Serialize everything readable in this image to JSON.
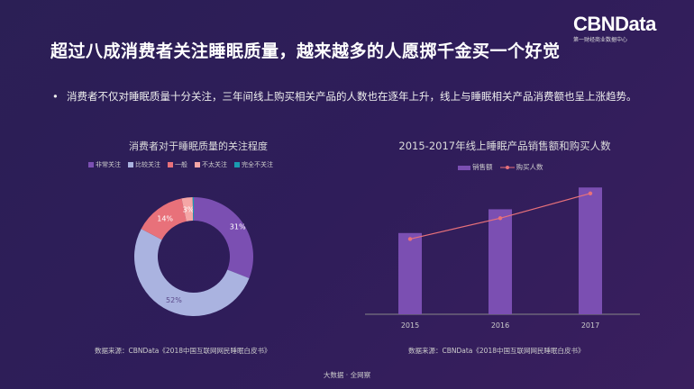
{
  "title": "超过八成消费者关注睡眠质量，越来越多的人愿掷千金买一个好觉",
  "logo": {
    "name": "CBNData",
    "subtitle": "第一财经商业数据中心"
  },
  "bullet": "消费者不仅对睡眠质量十分关注，三年间线上购买相关产品的人数也在逐年上升，线上与睡眠相关产品消费额也呈上涨趋势。",
  "bullet_symbol": "•",
  "footer": "大数据 · 全网察",
  "chart_data": [
    {
      "type": "pie",
      "style": "donut",
      "title": "消费者对于睡眠质量的关注程度",
      "legend_position": "top",
      "categories": [
        "非常关注",
        "比较关注",
        "一般",
        "不太关注",
        "完全不关注"
      ],
      "values": [
        31,
        52,
        14,
        3,
        0.3
      ],
      "labels": [
        "31%",
        "52%",
        "14%",
        "3%",
        ""
      ],
      "colors": [
        "#7b4fb2",
        "#aab3e0",
        "#e8717a",
        "#f5a6a6",
        "#1a9bb0"
      ],
      "source": "数据来源：CBNData《2018中国互联网网民睡眠白皮书》"
    },
    {
      "type": "bar",
      "title": "2015-2017年线上睡眠产品销售额和购买人数",
      "legend_position": "top",
      "grid": false,
      "y_axis_shown": false,
      "categories": [
        "2015",
        "2016",
        "2017"
      ],
      "series": [
        {
          "name": "销售额",
          "type": "bar",
          "values": [
            82,
            106,
            128
          ],
          "color": "#7b4fb2"
        },
        {
          "name": "购买人数",
          "type": "line",
          "values": [
            76,
            97,
            122
          ],
          "color": "#e8717a"
        }
      ],
      "ylim": [
        0,
        140
      ],
      "source": "数据来源：CBNData《2018中国互联网网民睡眠白皮书》"
    }
  ]
}
